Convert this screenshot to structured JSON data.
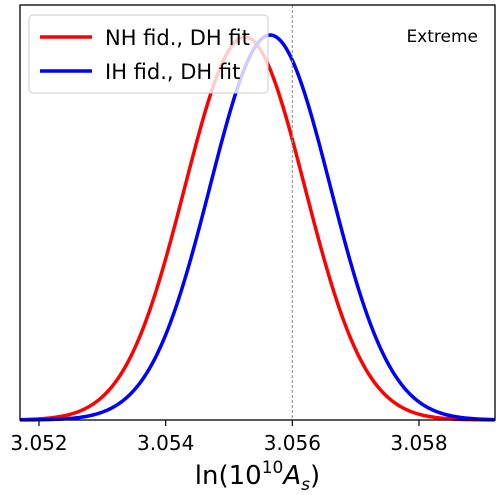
{
  "chart_data": {
    "type": "line",
    "title": "",
    "annotation": "Extreme",
    "xlabel": "ln(10^10 A_s)",
    "xlabel_parts": {
      "pre": "ln(10",
      "sup": "10",
      "mid": "A",
      "sub": "s",
      "post": ")"
    },
    "ylabel": "",
    "xlim": [
      3.0517,
      3.0592
    ],
    "ylim": [
      0,
      1.0
    ],
    "x_ticks": [
      3.052,
      3.054,
      3.056,
      3.058
    ],
    "x_tick_labels": [
      "3.052",
      "3.054",
      "3.056",
      "3.058"
    ],
    "show_y_ticks": false,
    "grid": false,
    "legend_position": "top-left",
    "reference_line": {
      "x": 3.056,
      "style": "dotted",
      "color": "#999999"
    },
    "series": [
      {
        "name": "NH fid., DH fit",
        "color": "#ff0000",
        "mean": 3.05525,
        "sigma": 0.00095,
        "peak": 0.995
      },
      {
        "name": "IH fid., DH fit",
        "color": "#0000ff",
        "mean": 3.05565,
        "sigma": 0.00095,
        "peak": 1.0
      }
    ]
  }
}
